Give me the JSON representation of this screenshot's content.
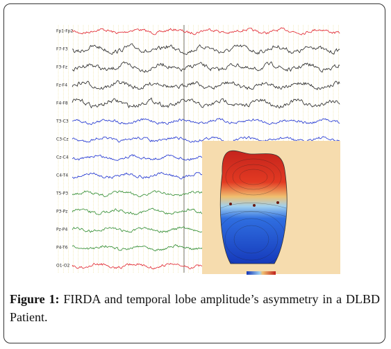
{
  "figure": {
    "channels": [
      {
        "label": "Fp1-Fp2",
        "color": "#e0202a"
      },
      {
        "label": "F7-F3",
        "color": "#222222"
      },
      {
        "label": "F3-Fz",
        "color": "#222222"
      },
      {
        "label": "Fz-F4",
        "color": "#222222"
      },
      {
        "label": "F4-F8",
        "color": "#222222"
      },
      {
        "label": "T3-C3",
        "color": "#1a2fd0"
      },
      {
        "label": "C3-Cz",
        "color": "#1a2fd0"
      },
      {
        "label": "Cz-C4",
        "color": "#1a2fd0"
      },
      {
        "label": "C4-T4",
        "color": "#1a2fd0"
      },
      {
        "label": "T5-P3",
        "color": "#2e8a2e"
      },
      {
        "label": "P3-Pz",
        "color": "#2e8a2e"
      },
      {
        "label": "Pz-P4",
        "color": "#2e8a2e"
      },
      {
        "label": "P4-T6",
        "color": "#2e8a2e"
      },
      {
        "label": "O1-O2",
        "color": "#e0202a"
      }
    ],
    "caption": {
      "label": "Figure 1:",
      "text": "FIRDA and temporal lobe amplitude’s asymmetry in a DLBD Patient."
    }
  }
}
